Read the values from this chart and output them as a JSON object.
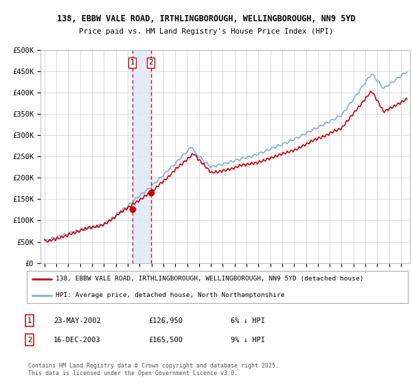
{
  "title1": "138, EBBW VALE ROAD, IRTHLINGBOROUGH, WELLINGBOROUGH, NN9 5YD",
  "title2": "Price paid vs. HM Land Registry's House Price Index (HPI)",
  "ylim": [
    0,
    500000
  ],
  "yticks": [
    0,
    50000,
    100000,
    150000,
    200000,
    250000,
    300000,
    350000,
    400000,
    450000,
    500000
  ],
  "ytick_labels": [
    "£0",
    "£50K",
    "£100K",
    "£150K",
    "£200K",
    "£250K",
    "£300K",
    "£350K",
    "£400K",
    "£450K",
    "£500K"
  ],
  "hpi_color": "#7aafe0",
  "price_color": "#cc0000",
  "highlight_fill": "#dde8f5",
  "highlight_border": "#cc0000",
  "t1_year": 2002.386,
  "t2_year": 2003.956,
  "t1_price": 126950,
  "t2_price": 165500,
  "legend_line1": "138, EBBW VALE ROAD, IRTHLINGBOROUGH, WELLINGBOROUGH, NN9 5YD (detached house)",
  "legend_line2": "HPI: Average price, detached house, North Northamptonshire",
  "table_row1_label": "1",
  "table_row1_date": "23-MAY-2002",
  "table_row1_price": "£126,950",
  "table_row1_pct": "6% ↓ HPI",
  "table_row2_label": "2",
  "table_row2_date": "16-DEC-2003",
  "table_row2_price": "£165,500",
  "table_row2_pct": "9% ↓ HPI",
  "footnote": "Contains HM Land Registry data © Crown copyright and database right 2025.\nThis data is licensed under the Open Government Licence v3.0.",
  "bg_color": "#ffffff",
  "grid_color": "#cccccc",
  "start_year": 1995,
  "end_year": 2025
}
